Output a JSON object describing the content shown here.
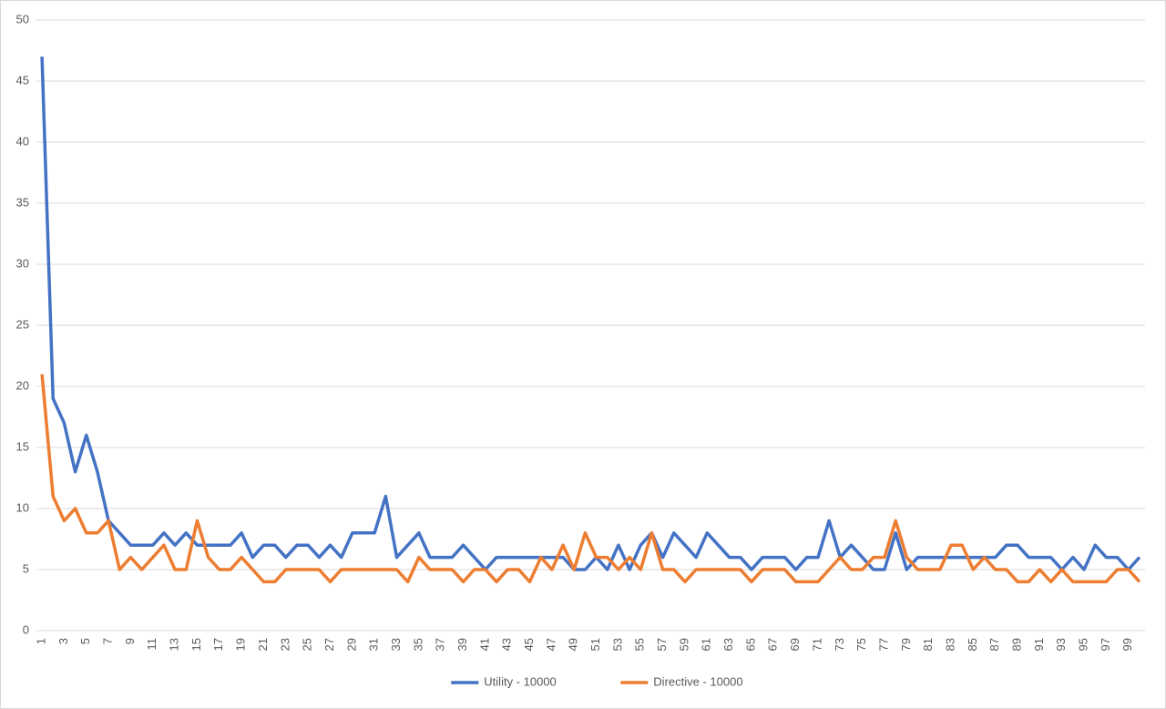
{
  "chart_data": {
    "type": "line",
    "categories": [
      1,
      null,
      3,
      null,
      5,
      null,
      7,
      null,
      9,
      null,
      11,
      null,
      13,
      null,
      15,
      null,
      17,
      null,
      19,
      null,
      21,
      null,
      23,
      null,
      25,
      null,
      27,
      null,
      29,
      null,
      31,
      null,
      33,
      null,
      35,
      null,
      37,
      null,
      39,
      null,
      41,
      null,
      43,
      null,
      45,
      null,
      47,
      null,
      49,
      null,
      51,
      null,
      53,
      null,
      55,
      null,
      57,
      null,
      59,
      null,
      61,
      null,
      63,
      null,
      65,
      null,
      67,
      null,
      69,
      null,
      71,
      null,
      73,
      null,
      75,
      null,
      77,
      null,
      79,
      null,
      81,
      null,
      83,
      null,
      85,
      null,
      87,
      null,
      89,
      null,
      91,
      null,
      93,
      null,
      95,
      null,
      97,
      null,
      99,
      null
    ],
    "series": [
      {
        "name": "Utility - 10000",
        "color": "#4472c4",
        "values": [
          47,
          19,
          17,
          13,
          16,
          13,
          9,
          8,
          7,
          7,
          7,
          8,
          7,
          8,
          7,
          7,
          7,
          7,
          8,
          6,
          7,
          7,
          6,
          7,
          7,
          6,
          7,
          6,
          8,
          8,
          8,
          11,
          6,
          7,
          8,
          6,
          6,
          6,
          7,
          6,
          5,
          6,
          6,
          6,
          6,
          6,
          6,
          6,
          5,
          5,
          6,
          5,
          7,
          5,
          7,
          8,
          6,
          8,
          7,
          6,
          8,
          7,
          6,
          6,
          5,
          6,
          6,
          6,
          5,
          6,
          6,
          9,
          6,
          7,
          6,
          5,
          5,
          8,
          5,
          6,
          6,
          6,
          6,
          6,
          6,
          6,
          6,
          7,
          7,
          6,
          6,
          6,
          5,
          6,
          5,
          7,
          6,
          6,
          5,
          6
        ]
      },
      {
        "name": "Directive - 10000",
        "color": "#ed7d31",
        "values": [
          21,
          11,
          9,
          10,
          8,
          8,
          9,
          5,
          6,
          5,
          6,
          7,
          5,
          5,
          9,
          6,
          5,
          5,
          6,
          5,
          4,
          4,
          5,
          5,
          5,
          5,
          4,
          5,
          5,
          5,
          5,
          5,
          5,
          4,
          6,
          5,
          5,
          5,
          4,
          5,
          5,
          4,
          5,
          5,
          4,
          6,
          5,
          7,
          5,
          8,
          6,
          6,
          5,
          6,
          5,
          8,
          5,
          5,
          4,
          5,
          5,
          5,
          5,
          5,
          4,
          5,
          5,
          5,
          4,
          4,
          4,
          5,
          6,
          5,
          5,
          6,
          6,
          9,
          6,
          5,
          5,
          5,
          7,
          7,
          5,
          6,
          5,
          5,
          4,
          4,
          5,
          4,
          5,
          4,
          4,
          4,
          4,
          5,
          5,
          4
        ]
      }
    ],
    "ylim": [
      0,
      50
    ],
    "yticks": [
      0,
      5,
      10,
      15,
      20,
      25,
      30,
      35,
      40,
      45,
      50
    ],
    "grid": true,
    "legend": "bottom"
  }
}
